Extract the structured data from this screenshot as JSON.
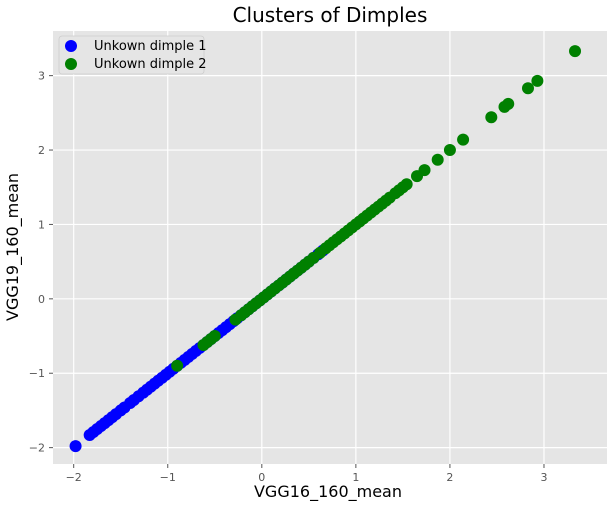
{
  "chart_data": {
    "type": "scatter",
    "title": "Clusters of Dimples",
    "xlabel": "VGG16_160_mean",
    "ylabel": "VGG19_160_mean",
    "xlim": [
      -2.22,
      3.67
    ],
    "ylim": [
      -2.22,
      3.6
    ],
    "xticks": [
      -2,
      -1,
      0,
      1,
      2,
      3
    ],
    "yticks": [
      -2,
      -1,
      0,
      1,
      2,
      3
    ],
    "grid": true,
    "legend_position": "top-left",
    "series": [
      {
        "name": "Unkown dimple 1",
        "color": "#0000ff",
        "points": [
          [
            -1.98,
            -1.98
          ],
          [
            -1.83,
            -1.83
          ],
          [
            -1.79,
            -1.79
          ],
          [
            -1.75,
            -1.75
          ],
          [
            -1.71,
            -1.71
          ],
          [
            -1.67,
            -1.67
          ],
          [
            -1.63,
            -1.63
          ],
          [
            -1.59,
            -1.59
          ],
          [
            -1.55,
            -1.55
          ],
          [
            -1.5,
            -1.5
          ],
          [
            -1.46,
            -1.46
          ],
          [
            -1.4,
            -1.4
          ],
          [
            -1.36,
            -1.36
          ],
          [
            -1.31,
            -1.31
          ],
          [
            -1.26,
            -1.26
          ],
          [
            -1.22,
            -1.22
          ],
          [
            -1.18,
            -1.18
          ],
          [
            -1.14,
            -1.14
          ],
          [
            -1.1,
            -1.1
          ],
          [
            -1.06,
            -1.06
          ],
          [
            -1.02,
            -1.02
          ],
          [
            -0.98,
            -0.98
          ],
          [
            -0.94,
            -0.94
          ],
          [
            -0.9,
            -0.9
          ],
          [
            -0.86,
            -0.86
          ],
          [
            -0.82,
            -0.82
          ],
          [
            -0.78,
            -0.78
          ],
          [
            -0.74,
            -0.74
          ],
          [
            -0.7,
            -0.7
          ],
          [
            -0.66,
            -0.66
          ],
          [
            -0.62,
            -0.62
          ],
          [
            -0.58,
            -0.58
          ],
          [
            -0.54,
            -0.54
          ],
          [
            -0.5,
            -0.5
          ],
          [
            -0.46,
            -0.46
          ],
          [
            -0.42,
            -0.42
          ],
          [
            -0.38,
            -0.38
          ],
          [
            -0.34,
            -0.34
          ],
          [
            -0.3,
            -0.3
          ],
          [
            -0.26,
            -0.26
          ],
          [
            -0.22,
            -0.22
          ],
          [
            -0.18,
            -0.18
          ],
          [
            -0.14,
            -0.14
          ],
          [
            -0.1,
            -0.1
          ],
          [
            -0.06,
            -0.06
          ],
          [
            -0.02,
            -0.02
          ],
          [
            0.02,
            0.02
          ],
          [
            0.06,
            0.06
          ],
          [
            0.1,
            0.1
          ],
          [
            0.14,
            0.14
          ],
          [
            0.18,
            0.18
          ],
          [
            0.22,
            0.22
          ],
          [
            0.26,
            0.26
          ],
          [
            0.3,
            0.3
          ],
          [
            0.34,
            0.34
          ],
          [
            0.38,
            0.38
          ],
          [
            0.42,
            0.42
          ],
          [
            0.46,
            0.46
          ],
          [
            0.5,
            0.5
          ],
          [
            0.55,
            0.55
          ],
          [
            0.6,
            0.6
          ],
          [
            0.65,
            0.65
          ]
        ]
      },
      {
        "name": "Unkown dimple 2",
        "color": "#008000",
        "points": [
          [
            -0.9,
            -0.9
          ],
          [
            -0.62,
            -0.62
          ],
          [
            -0.58,
            -0.58
          ],
          [
            -0.54,
            -0.54
          ],
          [
            -0.5,
            -0.5
          ],
          [
            -0.28,
            -0.28
          ],
          [
            -0.22,
            -0.22
          ],
          [
            -0.18,
            -0.18
          ],
          [
            -0.14,
            -0.14
          ],
          [
            -0.1,
            -0.1
          ],
          [
            -0.06,
            -0.06
          ],
          [
            -0.02,
            -0.02
          ],
          [
            0.02,
            0.02
          ],
          [
            0.06,
            0.06
          ],
          [
            0.1,
            0.1
          ],
          [
            0.14,
            0.14
          ],
          [
            0.18,
            0.18
          ],
          [
            0.22,
            0.22
          ],
          [
            0.26,
            0.26
          ],
          [
            0.3,
            0.3
          ],
          [
            0.34,
            0.34
          ],
          [
            0.38,
            0.38
          ],
          [
            0.42,
            0.42
          ],
          [
            0.46,
            0.46
          ],
          [
            0.5,
            0.5
          ],
          [
            0.55,
            0.55
          ],
          [
            0.62,
            0.62
          ],
          [
            0.68,
            0.68
          ],
          [
            0.72,
            0.72
          ],
          [
            0.76,
            0.76
          ],
          [
            0.8,
            0.8
          ],
          [
            0.84,
            0.84
          ],
          [
            0.88,
            0.88
          ],
          [
            0.92,
            0.92
          ],
          [
            0.96,
            0.96
          ],
          [
            1.0,
            1.0
          ],
          [
            1.04,
            1.04
          ],
          [
            1.08,
            1.08
          ],
          [
            1.12,
            1.12
          ],
          [
            1.16,
            1.16
          ],
          [
            1.2,
            1.2
          ],
          [
            1.24,
            1.24
          ],
          [
            1.28,
            1.28
          ],
          [
            1.32,
            1.32
          ],
          [
            1.36,
            1.36
          ],
          [
            1.42,
            1.42
          ],
          [
            1.46,
            1.46
          ],
          [
            1.5,
            1.5
          ],
          [
            1.54,
            1.54
          ],
          [
            1.65,
            1.65
          ],
          [
            1.73,
            1.73
          ],
          [
            1.87,
            1.87
          ],
          [
            2.0,
            2.0
          ],
          [
            2.14,
            2.14
          ],
          [
            2.44,
            2.44
          ],
          [
            2.58,
            2.58
          ],
          [
            2.62,
            2.62
          ],
          [
            2.83,
            2.83
          ],
          [
            2.93,
            2.93
          ],
          [
            3.33,
            3.33
          ]
        ]
      }
    ]
  }
}
